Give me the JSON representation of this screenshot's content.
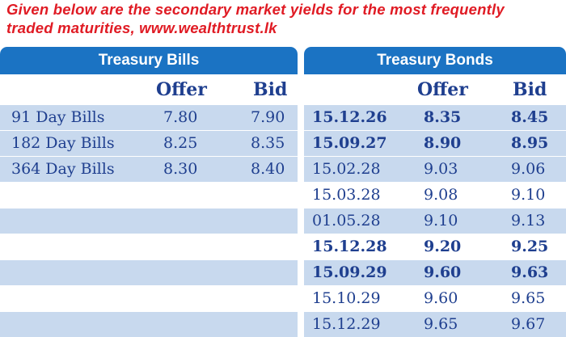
{
  "caption": {
    "line1": "Given below are the secondary market yields for the most frequently",
    "line2": "traded maturities, www.wealthtrust.lk"
  },
  "bills": {
    "title": "Treasury Bills",
    "offer_label": "Offer",
    "bid_label": "Bid",
    "rows": [
      {
        "name": "91 Day Bills",
        "offer": "7.80",
        "bid": "7.90"
      },
      {
        "name": "182 Day Bills",
        "offer": "8.25",
        "bid": "8.35"
      },
      {
        "name": "364 Day Bills",
        "offer": "8.30",
        "bid": "8.40"
      }
    ]
  },
  "bonds": {
    "title": "Treasury Bonds",
    "offer_label": "Offer",
    "bid_label": "Bid",
    "rows": [
      {
        "maturity": "15.12.26",
        "offer": "8.35",
        "bid": "8.45",
        "bold": true
      },
      {
        "maturity": "15.09.27",
        "offer": "8.90",
        "bid": "8.95",
        "bold": true
      },
      {
        "maturity": "15.02.28",
        "offer": "9.03",
        "bid": "9.06",
        "bold": false
      },
      {
        "maturity": "15.03.28",
        "offer": "9.08",
        "bid": "9.10",
        "bold": false
      },
      {
        "maturity": "01.05.28",
        "offer": "9.10",
        "bid": "9.13",
        "bold": false
      },
      {
        "maturity": "15.12.28",
        "offer": "9.20",
        "bid": "9.25",
        "bold": true
      },
      {
        "maturity": "15.09.29",
        "offer": "9.60",
        "bid": "9.63",
        "bold": true
      },
      {
        "maturity": "15.10.29",
        "offer": "9.60",
        "bid": "9.65",
        "bold": false
      },
      {
        "maturity": "15.12.29",
        "offer": "9.65",
        "bid": "9.67",
        "bold": false
      }
    ]
  }
}
